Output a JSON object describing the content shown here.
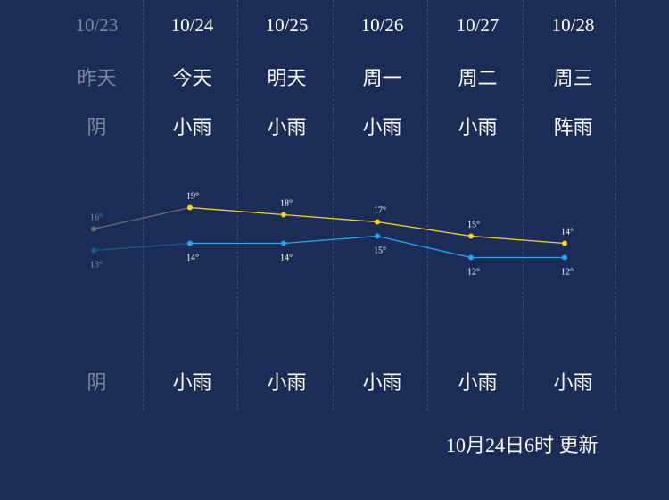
{
  "days": [
    {
      "date": "10/23",
      "label": "昨天",
      "weather_day": "阴",
      "weather_night": "阴",
      "high": 16,
      "low": 13,
      "past": true
    },
    {
      "date": "10/24",
      "label": "今天",
      "weather_day": "小雨",
      "weather_night": "小雨",
      "high": 19,
      "low": 14,
      "past": false
    },
    {
      "date": "10/25",
      "label": "明天",
      "weather_day": "小雨",
      "weather_night": "小雨",
      "high": 18,
      "low": 14,
      "past": false
    },
    {
      "date": "10/26",
      "label": "周一",
      "weather_day": "小雨",
      "weather_night": "小雨",
      "high": 17,
      "low": 15,
      "past": false
    },
    {
      "date": "10/27",
      "label": "周二",
      "weather_day": "小雨",
      "weather_night": "小雨",
      "high": 15,
      "low": 12,
      "past": false
    },
    {
      "date": "10/28",
      "label": "周三",
      "weather_day": "阵雨",
      "weather_night": "小雨",
      "high": 14,
      "low": 12,
      "past": false
    }
  ],
  "chart_data": {
    "type": "line",
    "x": [
      "10/23",
      "10/24",
      "10/25",
      "10/26",
      "10/27",
      "10/28"
    ],
    "series": [
      {
        "values": [
          16,
          19,
          18,
          17,
          15,
          14
        ],
        "color": "#f5d614"
      },
      {
        "values": [
          13,
          14,
          14,
          15,
          12,
          12
        ],
        "color": "#1fa8ee"
      }
    ],
    "degree_symbol": "°",
    "past_color": "#6b6f79",
    "past_low_color": "#1a5a8c"
  },
  "colors": {
    "background": "#1b2d57",
    "text": "#ffffff",
    "past_text": "#7d879c",
    "separator": "#3b4d78"
  },
  "update_text": "10月24日6时 更新"
}
